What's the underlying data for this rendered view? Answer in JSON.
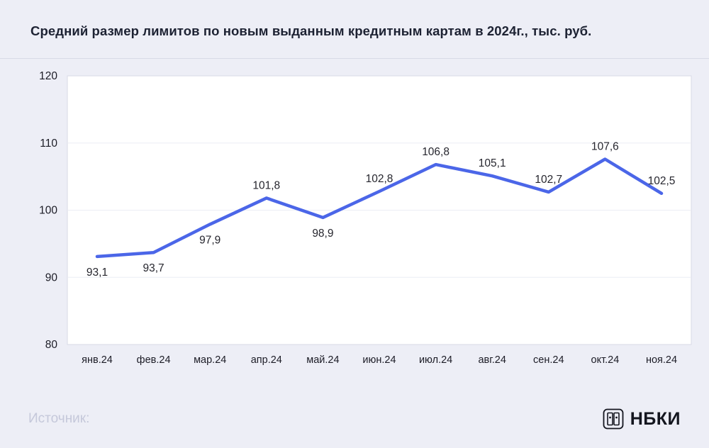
{
  "header": {
    "title": "Средний размер лимитов по новым выданным кредитным картам в 2024г., тыс. руб."
  },
  "footer": {
    "source_label": "Источник:",
    "logo_text": "НБКИ"
  },
  "colors": {
    "page_bg": "#edeef6",
    "plot_bg": "#ffffff",
    "plot_border": "#d8dae6",
    "grid": "#eceef5",
    "line": "#4b66e8",
    "data_label_text": "#26262e",
    "axis_text": "#1c1c26",
    "title_text": "#1d2233",
    "source_text": "#c5c8da",
    "logo_color": "#14161f"
  },
  "chart_data": {
    "type": "line",
    "title": "Средний размер лимитов по новым выданным кредитным картам в 2024г., тыс. руб.",
    "categories": [
      "янв.24",
      "фев.24",
      "мар.24",
      "апр.24",
      "май.24",
      "июн.24",
      "июл.24",
      "авг.24",
      "сен.24",
      "окт.24",
      "ноя.24"
    ],
    "values": [
      93.1,
      93.7,
      97.9,
      101.8,
      98.9,
      102.8,
      106.8,
      105.1,
      102.7,
      107.6,
      102.5
    ],
    "value_labels": [
      "93,1",
      "93,7",
      "97,9",
      "101,8",
      "98,9",
      "102,8",
      "106,8",
      "105,1",
      "102,7",
      "107,6",
      "102,5"
    ],
    "label_positions": [
      "below",
      "below",
      "below",
      "above",
      "below",
      "above",
      "above",
      "above",
      "above",
      "above",
      "above"
    ],
    "xlabel": "",
    "ylabel": "",
    "ylim": [
      80,
      120
    ],
    "yticks": [
      80,
      90,
      100,
      110,
      120
    ],
    "grid": true,
    "legend": "none"
  }
}
